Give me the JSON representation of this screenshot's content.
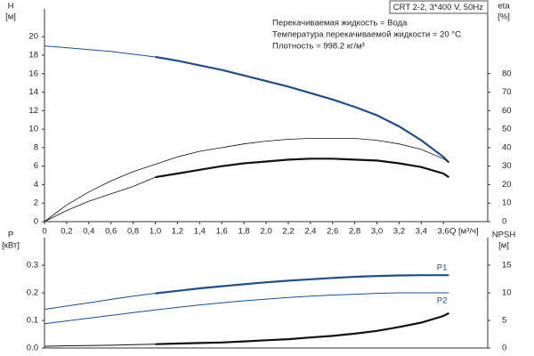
{
  "chart_data": [
    {
      "type": "line",
      "title": "CRT 2-2, 3*400 V, 50Hz",
      "annotations": [
        "Перекачиваемая жидкость = Вода",
        "Температура перекачиваемой жидкости = 20 °C",
        "Плотность = 998.2 кг/м³"
      ],
      "y_label": "H",
      "y_unit": "[м]",
      "y2_label": "eta",
      "y2_unit": "[%]",
      "x_label": "Q [м³/ч]",
      "x": [
        0,
        0.2,
        0.4,
        0.6,
        0.8,
        1.0,
        1.2,
        1.4,
        1.6,
        1.8,
        2.0,
        2.2,
        2.4,
        2.6,
        2.8,
        3.0,
        3.2,
        3.4,
        3.6,
        3.65
      ],
      "xlim": [
        0,
        4
      ],
      "xticks": [
        0,
        {
          "value": 0.2,
          "label": "0,2"
        },
        {
          "value": 0.4,
          "label": "0,4"
        },
        {
          "value": 0.6,
          "label": "0,6"
        },
        {
          "value": 0.8,
          "label": "0,8"
        },
        {
          "value": 1.0,
          "label": "1,0"
        },
        {
          "value": 1.2,
          "label": "1,2"
        },
        {
          "value": 1.4,
          "label": "1,4"
        },
        {
          "value": 1.6,
          "label": "1,6"
        },
        {
          "value": 1.8,
          "label": "1,8"
        },
        {
          "value": 2.0,
          "label": "2,0"
        },
        {
          "value": 2.2,
          "label": "2,2"
        },
        {
          "value": 2.4,
          "label": "2,4"
        },
        {
          "value": 2.6,
          "label": "2,6"
        },
        {
          "value": 2.8,
          "label": "2,8"
        },
        {
          "value": 3.0,
          "label": "3,0"
        },
        {
          "value": 3.2,
          "label": "3,2"
        },
        {
          "value": 3.4,
          "label": "3,4"
        },
        {
          "value": 3.6,
          "label": "3,6"
        }
      ],
      "ylim": [
        0,
        23
      ],
      "yticks": [
        0,
        2,
        4,
        6,
        8,
        10,
        12,
        14,
        16,
        18,
        20
      ],
      "y2lim": [
        0,
        115
      ],
      "y2ticks": [
        0,
        10,
        20,
        30,
        40,
        50,
        60,
        70,
        80
      ],
      "series": [
        {
          "color": "#1f4e8c",
          "width": 1,
          "values": [
            19.0,
            18.8,
            18.6,
            18.4,
            18.1,
            17.8,
            null,
            null,
            null,
            null,
            null,
            null,
            null,
            null,
            null,
            null,
            null,
            null,
            null,
            null
          ]
        },
        {
          "color": "#1f4e8c",
          "width": 2.2,
          "values": [
            null,
            null,
            null,
            null,
            null,
            17.8,
            17.4,
            16.9,
            16.4,
            15.8,
            15.2,
            14.6,
            13.9,
            13.2,
            12.4,
            11.5,
            10.3,
            8.8,
            7.0,
            6.4
          ]
        },
        {
          "color": "#111111",
          "width": 0.8,
          "axis": "y2",
          "values": [
            0,
            9,
            16,
            22,
            27,
            31,
            35,
            38,
            40,
            42,
            43.5,
            44.5,
            45,
            45,
            45,
            44,
            42,
            39,
            34,
            32
          ]
        },
        {
          "color": "#111111",
          "width": 0.8,
          "axis": "y2",
          "values": [
            0,
            6,
            11,
            15,
            19,
            24,
            null,
            null,
            null,
            null,
            null,
            null,
            null,
            null,
            null,
            null,
            null,
            null,
            null,
            null
          ]
        },
        {
          "color": "#111111",
          "width": 2.2,
          "axis": "y2",
          "values": [
            null,
            null,
            null,
            null,
            null,
            24,
            26,
            28,
            30,
            31.5,
            32.5,
            33.5,
            34,
            34,
            33.5,
            33,
            31.5,
            29.5,
            26,
            24
          ]
        }
      ]
    },
    {
      "type": "line",
      "y_label": "P",
      "y_unit": "[кВт]",
      "y2_label": "NPSH",
      "y2_unit": "[м]",
      "x": [
        0,
        0.2,
        0.4,
        0.6,
        0.8,
        1.0,
        1.2,
        1.4,
        1.6,
        1.8,
        2.0,
        2.2,
        2.4,
        2.6,
        2.8,
        3.0,
        3.2,
        3.4,
        3.6,
        3.65
      ],
      "xlim": [
        0,
        4
      ],
      "ylim": [
        0,
        0.4
      ],
      "yticks": [
        {
          "value": 0,
          "label": "0.0"
        },
        0.1,
        0.2,
        0.3
      ],
      "y2lim": [
        0,
        20
      ],
      "y2ticks": [
        0,
        5,
        10,
        15
      ],
      "series": [
        {
          "color": "#1f4e8c",
          "width": 1,
          "values": [
            0.14,
            0.152,
            0.164,
            0.176,
            0.188,
            0.198,
            null,
            null,
            null,
            null,
            null,
            null,
            null,
            null,
            null,
            null,
            null,
            null,
            null,
            null
          ]
        },
        {
          "name": "P1",
          "color": "#1f4e8c",
          "width": 2.2,
          "values": [
            null,
            null,
            null,
            null,
            null,
            0.198,
            0.207,
            0.216,
            0.224,
            0.231,
            0.238,
            0.244,
            0.249,
            0.254,
            0.258,
            0.261,
            0.263,
            0.264,
            0.264,
            0.264
          ]
        },
        {
          "name": "P2",
          "color": "#1f4e8c",
          "width": 1,
          "values": [
            0.088,
            0.098,
            0.108,
            0.118,
            0.128,
            0.138,
            0.147,
            0.156,
            0.164,
            0.171,
            0.177,
            0.183,
            0.188,
            0.192,
            0.195,
            0.198,
            0.2,
            0.2,
            0.2,
            0.2
          ]
        },
        {
          "color": "#111111",
          "width": 1,
          "axis": "y2",
          "values": [
            0.3,
            0.4,
            0.45,
            0.5,
            0.6,
            0.7,
            null,
            null,
            null,
            null,
            null,
            null,
            null,
            null,
            null,
            null,
            null,
            null,
            null,
            null
          ]
        },
        {
          "color": "#111111",
          "width": 2.2,
          "axis": "y2",
          "values": [
            null,
            null,
            null,
            null,
            null,
            0.7,
            0.8,
            0.9,
            1.0,
            1.2,
            1.4,
            1.6,
            1.9,
            2.2,
            2.6,
            3.1,
            3.8,
            4.6,
            5.8,
            6.3
          ]
        }
      ]
    }
  ]
}
